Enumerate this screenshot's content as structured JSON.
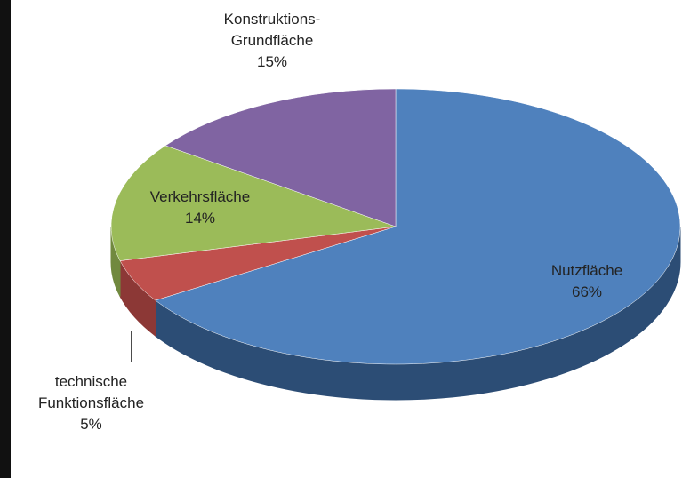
{
  "chart_data": {
    "type": "pie3d",
    "categories": [
      "Nutzfläche",
      "technische Funktionsfläche",
      "Verkehrsfläche",
      "Konstruktions-Grundfläche"
    ],
    "values": [
      66,
      5,
      14,
      15
    ],
    "value_labels": [
      "66%",
      "5%",
      "14%",
      "15%"
    ],
    "colors": [
      "#4f81bd",
      "#c0504d",
      "#9bbb59",
      "#8064a2"
    ]
  }
}
